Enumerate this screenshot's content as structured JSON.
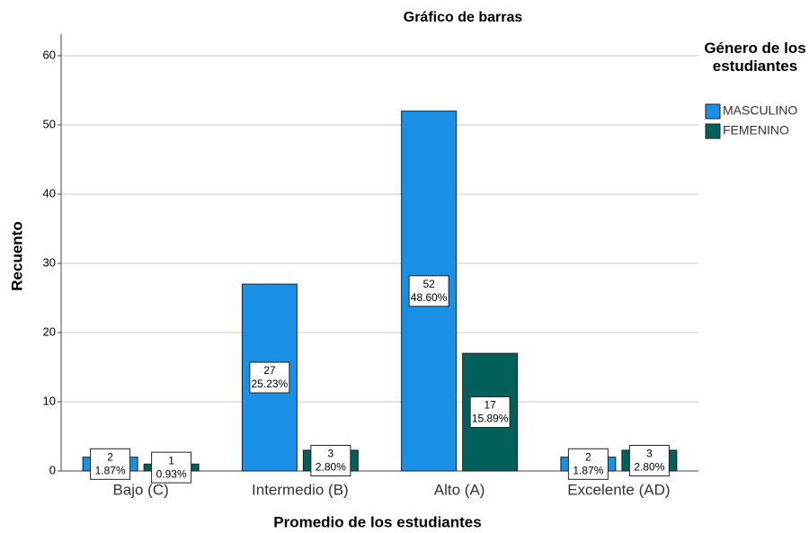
{
  "chart_data": {
    "type": "bar",
    "title": "Gráfico de barras",
    "x_label": "Promedio de los estudiantes",
    "y_label": "Recuento",
    "legend_title": "Género de los estudiantes",
    "categories": [
      "Bajo (C)",
      "Intermedio (B)",
      "Alto (A)",
      "Excelente (AD)"
    ],
    "series": [
      {
        "name": "MASCULINO",
        "color": "#1a8fe6",
        "values": [
          2,
          27,
          52,
          2
        ],
        "percentage_labels": [
          "1.87%",
          "25.23%",
          "48.60%",
          "1.87%"
        ]
      },
      {
        "name": "FEMENINO",
        "color": "#02605c",
        "values": [
          1,
          3,
          17,
          3
        ],
        "percentage_labels": [
          "0.93%",
          "2.80%",
          "15.89%",
          "2.80%"
        ]
      }
    ],
    "ylim": [
      0,
      60
    ],
    "yticks": [
      0,
      10,
      20,
      30,
      40,
      50,
      60
    ],
    "grid": true,
    "legend": "right"
  }
}
